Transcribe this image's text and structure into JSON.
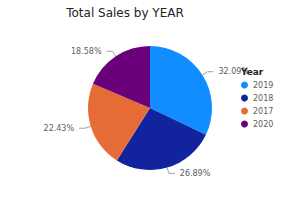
{
  "chart_data": {
    "type": "pie",
    "title": "Total Sales by YEAR",
    "legend_title": "Year",
    "categories": [
      "2019",
      "2018",
      "2017",
      "2020"
    ],
    "values": [
      32.09,
      26.89,
      22.43,
      18.58
    ],
    "value_labels": [
      "32.09%",
      "26.89%",
      "22.43%",
      "18.58%"
    ],
    "colors": [
      "#118DFF",
      "#12239E",
      "#E66C37",
      "#6B007B"
    ],
    "data_labels": true,
    "legend": "right"
  }
}
